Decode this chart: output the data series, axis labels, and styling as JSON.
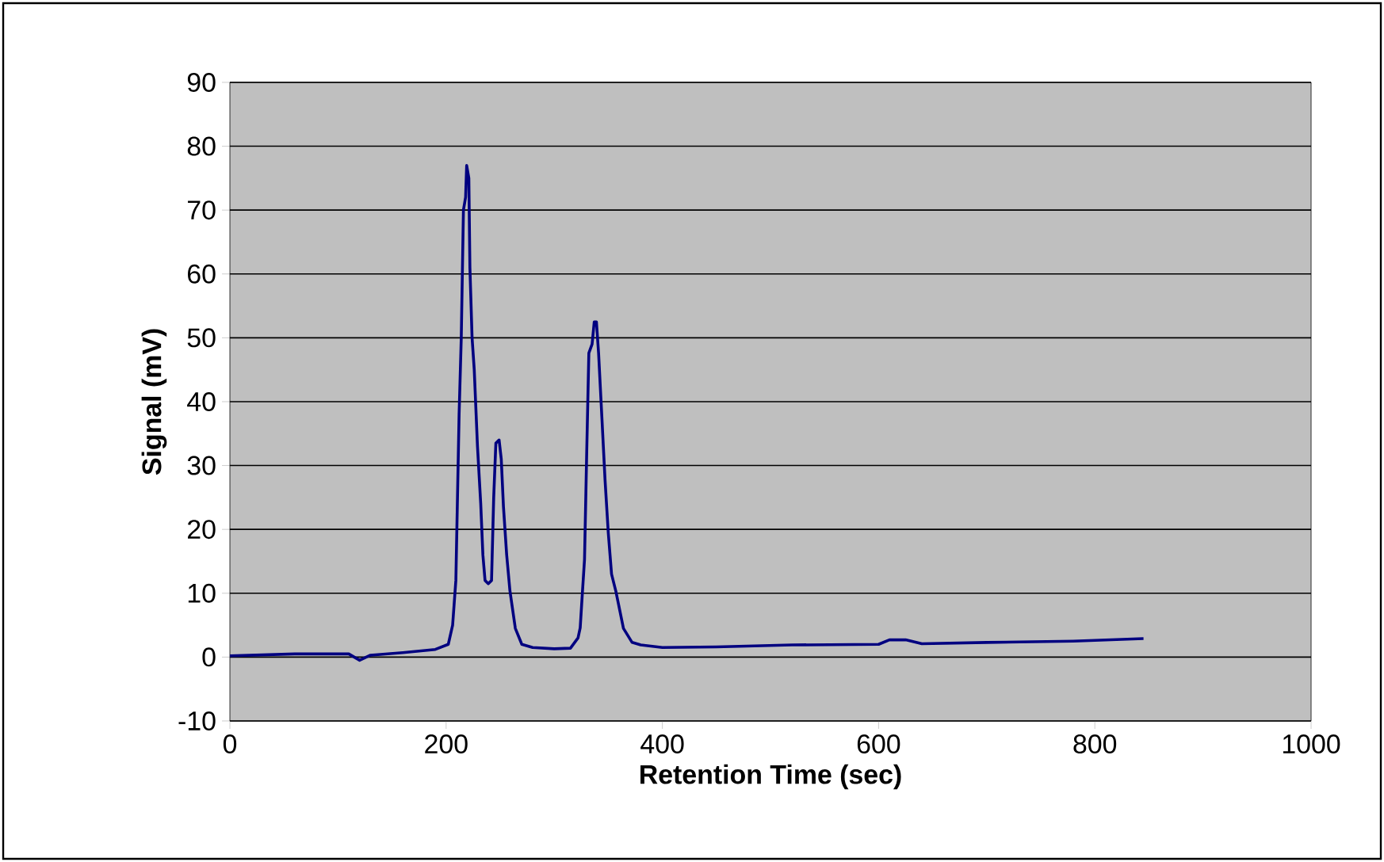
{
  "chart_data": {
    "type": "line",
    "xlabel": "Retention Time (sec)",
    "ylabel": "Signal (mV)",
    "xlim": [
      0,
      1000
    ],
    "ylim": [
      -10,
      90
    ],
    "xticks": [
      0,
      200,
      400,
      600,
      800,
      1000
    ],
    "yticks": [
      -10,
      0,
      10,
      20,
      30,
      40,
      50,
      60,
      70,
      80,
      90
    ],
    "grid": "y",
    "marker": "none",
    "line_style": "solid",
    "series": [
      {
        "color": "#000080",
        "x": [
          0,
          60,
          110,
          120,
          130,
          160,
          190,
          202,
          206,
          209,
          212,
          214,
          216,
          218,
          219,
          221,
          222,
          224,
          226,
          229,
          232,
          234,
          236,
          239,
          242,
          244,
          246,
          249,
          251,
          253,
          256,
          259,
          264,
          270,
          280,
          300,
          315,
          322,
          324,
          326,
          328,
          330,
          332,
          335,
          337,
          339,
          341,
          344,
          347,
          350,
          353,
          357,
          364,
          372,
          380,
          400,
          450,
          520,
          600,
          610,
          625,
          640,
          700,
          780,
          845
        ],
        "values": [
          0.2,
          0.5,
          0.5,
          -0.5,
          0.3,
          0.7,
          1.2,
          2,
          5,
          12,
          38,
          50,
          70,
          72,
          77,
          75,
          61,
          50,
          45,
          33,
          24,
          16,
          12,
          11.5,
          12,
          25,
          33.5,
          34,
          31,
          23.6,
          16,
          10.4,
          4.5,
          2,
          1.5,
          1.3,
          1.4,
          3,
          4.6,
          10,
          15.3,
          31.8,
          47.6,
          49,
          52.5,
          52.5,
          47.6,
          37.7,
          27.7,
          19.4,
          13,
          10.3,
          4.5,
          2.3,
          1.9,
          1.5,
          1.6,
          1.9,
          2,
          2.7,
          2.7,
          2.1,
          2.3,
          2.5,
          2.9
        ]
      }
    ]
  }
}
